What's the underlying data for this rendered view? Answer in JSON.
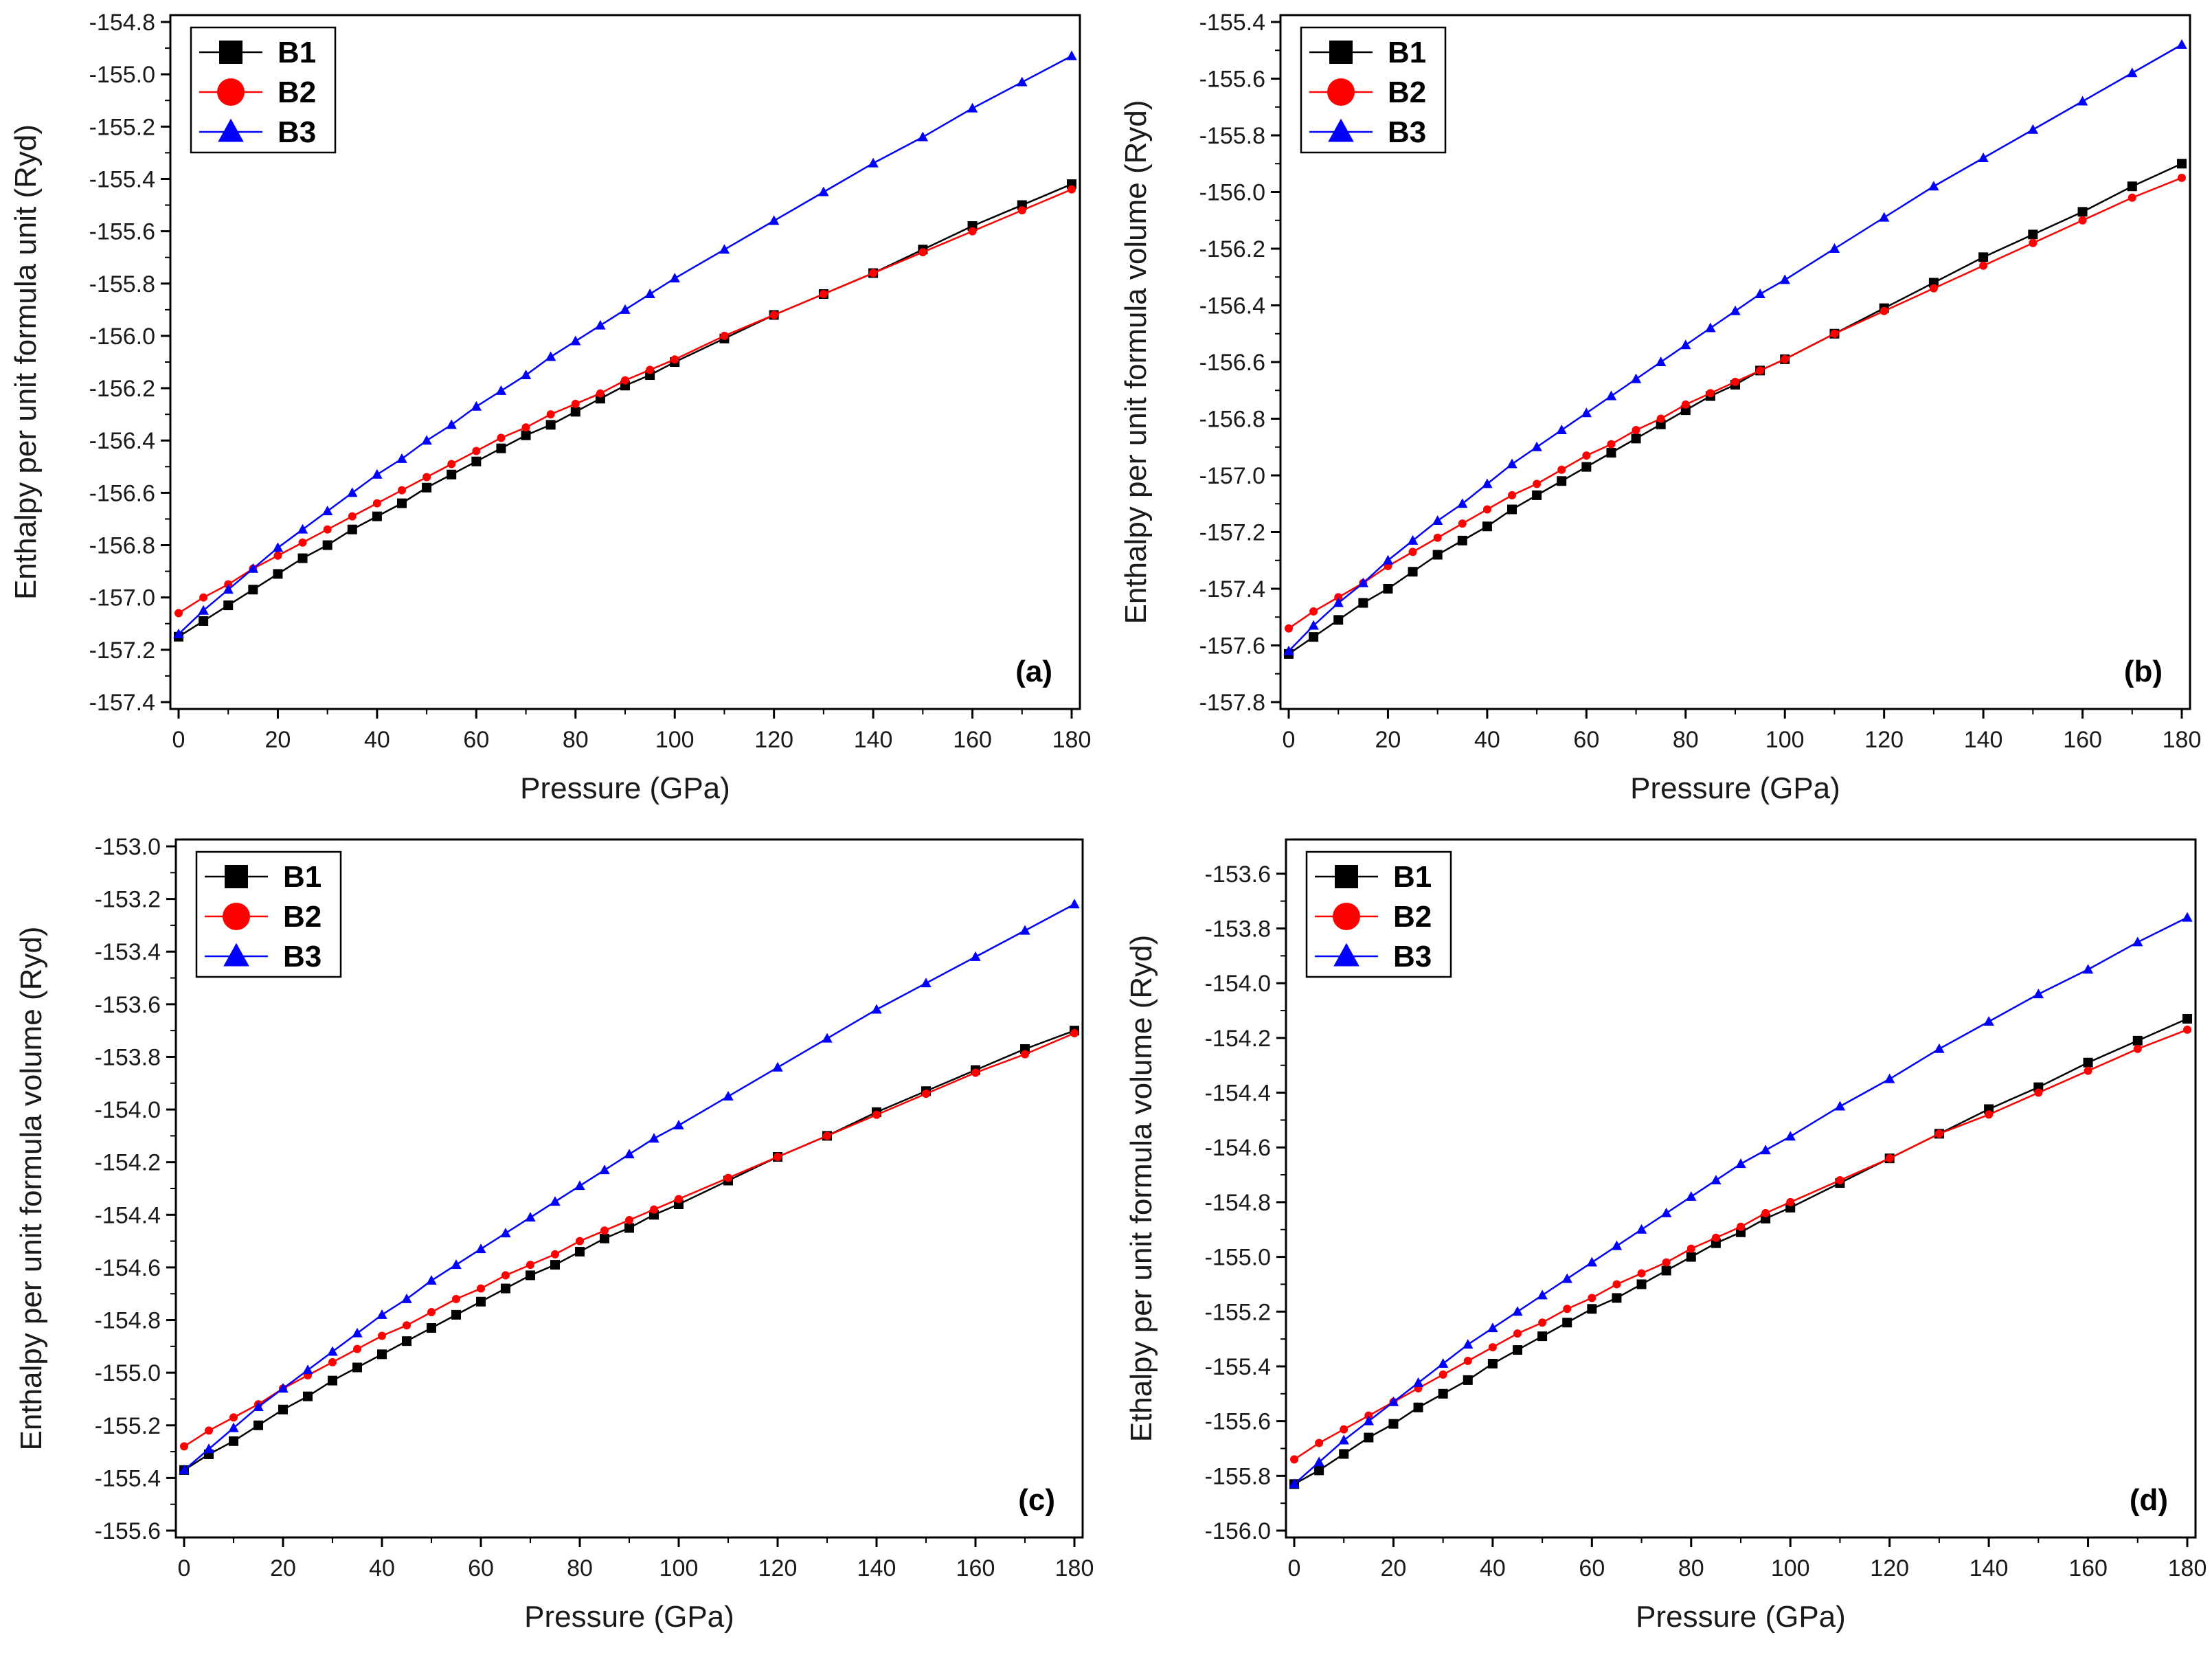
{
  "chart_data": [
    {
      "type": "line",
      "panel_label": "(a)",
      "xlabel": "Pressure (GPa)",
      "ylabel": "Enthalpy per unit formula unit (Ryd)",
      "xlim": [
        0,
        180
      ],
      "ylim": [
        -157.4,
        -154.8
      ],
      "xticks": [
        "0",
        "20",
        "40",
        "60",
        "80",
        "100",
        "120",
        "140",
        "160",
        "180"
      ],
      "yticks": [
        "-157.4",
        "-157.2",
        "-157.0",
        "-156.8",
        "-156.6",
        "-156.4",
        "-156.2",
        "-156.0",
        "-155.8",
        "-155.6",
        "-155.4",
        "-155.2",
        "-155.0",
        "-154.8"
      ],
      "legend": {
        "position": "top-left",
        "entries": [
          "B1",
          "B2",
          "B3"
        ]
      },
      "x": [
        0,
        5,
        10,
        15,
        20,
        25,
        30,
        35,
        40,
        45,
        50,
        55,
        60,
        65,
        70,
        75,
        80,
        85,
        90,
        95,
        100,
        110,
        120,
        130,
        140,
        150,
        160,
        170,
        180
      ],
      "series": [
        {
          "name": "B1",
          "marker": "square",
          "color": "#000000",
          "values": [
            -157.15,
            -157.09,
            -157.03,
            -156.97,
            -156.91,
            -156.85,
            -156.8,
            -156.74,
            -156.69,
            -156.64,
            -156.58,
            -156.53,
            -156.48,
            -156.43,
            -156.38,
            -156.34,
            -156.29,
            -156.24,
            -156.19,
            -156.15,
            -156.1,
            -156.01,
            -155.92,
            -155.84,
            -155.76,
            -155.67,
            -155.58,
            -155.5,
            -155.42
          ]
        },
        {
          "name": "B2",
          "marker": "circle",
          "color": "#ff0000",
          "values": [
            -157.06,
            -157.0,
            -156.95,
            -156.89,
            -156.84,
            -156.79,
            -156.74,
            -156.69,
            -156.64,
            -156.59,
            -156.54,
            -156.49,
            -156.44,
            -156.39,
            -156.35,
            -156.3,
            -156.26,
            -156.22,
            -156.17,
            -156.13,
            -156.09,
            -156.0,
            -155.92,
            -155.84,
            -155.76,
            -155.68,
            -155.6,
            -155.52,
            -155.44
          ]
        },
        {
          "name": "B3",
          "marker": "triangle",
          "color": "#0000ff",
          "values": [
            -157.14,
            -157.05,
            -156.97,
            -156.89,
            -156.81,
            -156.74,
            -156.67,
            -156.6,
            -156.53,
            -156.47,
            -156.4,
            -156.34,
            -156.27,
            -156.21,
            -156.15,
            -156.08,
            -156.02,
            -155.96,
            -155.9,
            -155.84,
            -155.78,
            -155.67,
            -155.56,
            -155.45,
            -155.34,
            -155.24,
            -155.13,
            -155.03,
            -154.93
          ]
        }
      ]
    },
    {
      "type": "line",
      "panel_label": "(b)",
      "xlabel": "Pressure (GPa)",
      "ylabel": "Enthalpy per unit formula volume (Ryd)",
      "xlim": [
        0,
        180
      ],
      "ylim": [
        -157.8,
        -155.4
      ],
      "xticks": [
        "0",
        "20",
        "40",
        "60",
        "80",
        "100",
        "120",
        "140",
        "160",
        "180"
      ],
      "yticks": [
        "-157.8",
        "-157.6",
        "-157.4",
        "-157.2",
        "-157.0",
        "-156.8",
        "-156.6",
        "-156.4",
        "-156.2",
        "-156.0",
        "-155.8",
        "-155.6",
        "-155.4"
      ],
      "legend": {
        "position": "top-left",
        "entries": [
          "B1",
          "B2",
          "B3"
        ]
      },
      "x": [
        0,
        5,
        10,
        15,
        20,
        25,
        30,
        35,
        40,
        45,
        50,
        55,
        60,
        65,
        70,
        75,
        80,
        85,
        90,
        95,
        100,
        110,
        120,
        130,
        140,
        150,
        160,
        170,
        180
      ],
      "series": [
        {
          "name": "B1",
          "marker": "square",
          "color": "#000000",
          "values": [
            -157.63,
            -157.57,
            -157.51,
            -157.45,
            -157.4,
            -157.34,
            -157.28,
            -157.23,
            -157.18,
            -157.12,
            -157.07,
            -157.02,
            -156.97,
            -156.92,
            -156.87,
            -156.82,
            -156.77,
            -156.72,
            -156.68,
            -156.63,
            -156.59,
            -156.5,
            -156.41,
            -156.32,
            -156.23,
            -156.15,
            -156.07,
            -155.98,
            -155.9
          ]
        },
        {
          "name": "B2",
          "marker": "circle",
          "color": "#ff0000",
          "values": [
            -157.54,
            -157.48,
            -157.43,
            -157.38,
            -157.32,
            -157.27,
            -157.22,
            -157.17,
            -157.12,
            -157.07,
            -157.03,
            -156.98,
            -156.93,
            -156.89,
            -156.84,
            -156.8,
            -156.75,
            -156.71,
            -156.67,
            -156.63,
            -156.59,
            -156.5,
            -156.42,
            -156.34,
            -156.26,
            -156.18,
            -156.1,
            -156.02,
            -155.95
          ]
        },
        {
          "name": "B3",
          "marker": "triangle",
          "color": "#0000ff",
          "values": [
            -157.62,
            -157.53,
            -157.45,
            -157.38,
            -157.3,
            -157.23,
            -157.16,
            -157.1,
            -157.03,
            -156.96,
            -156.9,
            -156.84,
            -156.78,
            -156.72,
            -156.66,
            -156.6,
            -156.54,
            -156.48,
            -156.42,
            -156.36,
            -156.31,
            -156.2,
            -156.09,
            -155.98,
            -155.88,
            -155.78,
            -155.68,
            -155.58,
            -155.48
          ]
        }
      ]
    },
    {
      "type": "line",
      "panel_label": "(c)",
      "xlabel": "Pressure (GPa)",
      "ylabel": "Enthalpy per unit formula volume (Ryd)",
      "xlim": [
        0,
        180
      ],
      "ylim": [
        -155.6,
        -153.0
      ],
      "xticks": [
        "0",
        "20",
        "40",
        "60",
        "80",
        "100",
        "120",
        "140",
        "160",
        "180"
      ],
      "yticks": [
        "-155.6",
        "-155.4",
        "-155.2",
        "-155.0",
        "-154.8",
        "-154.6",
        "-154.4",
        "-154.2",
        "-154.0",
        "-153.8",
        "-153.6",
        "-153.4",
        "-153.2",
        "-153.0"
      ],
      "legend": {
        "position": "top-left",
        "entries": [
          "B1",
          "B2",
          "B3"
        ]
      },
      "x": [
        0,
        5,
        10,
        15,
        20,
        25,
        30,
        35,
        40,
        45,
        50,
        55,
        60,
        65,
        70,
        75,
        80,
        85,
        90,
        95,
        100,
        110,
        120,
        130,
        140,
        150,
        160,
        170,
        180
      ],
      "series": [
        {
          "name": "B1",
          "marker": "square",
          "color": "#000000",
          "values": [
            -155.37,
            -155.31,
            -155.26,
            -155.2,
            -155.14,
            -155.09,
            -155.03,
            -154.98,
            -154.93,
            -154.88,
            -154.83,
            -154.78,
            -154.73,
            -154.68,
            -154.63,
            -154.59,
            -154.54,
            -154.49,
            -154.45,
            -154.4,
            -154.36,
            -154.27,
            -154.18,
            -154.1,
            -154.01,
            -153.93,
            -153.85,
            -153.77,
            -153.7
          ]
        },
        {
          "name": "B2",
          "marker": "circle",
          "color": "#ff0000",
          "values": [
            -155.28,
            -155.22,
            -155.17,
            -155.12,
            -155.06,
            -155.01,
            -154.96,
            -154.91,
            -154.86,
            -154.82,
            -154.77,
            -154.72,
            -154.68,
            -154.63,
            -154.59,
            -154.55,
            -154.5,
            -154.46,
            -154.42,
            -154.38,
            -154.34,
            -154.26,
            -154.18,
            -154.1,
            -154.02,
            -153.94,
            -153.86,
            -153.79,
            -153.71
          ]
        },
        {
          "name": "B3",
          "marker": "triangle",
          "color": "#0000ff",
          "values": [
            -155.37,
            -155.29,
            -155.21,
            -155.13,
            -155.06,
            -154.99,
            -154.92,
            -154.85,
            -154.78,
            -154.72,
            -154.65,
            -154.59,
            -154.53,
            -154.47,
            -154.41,
            -154.35,
            -154.29,
            -154.23,
            -154.17,
            -154.11,
            -154.06,
            -153.95,
            -153.84,
            -153.73,
            -153.62,
            -153.52,
            -153.42,
            -153.32,
            -153.22
          ]
        }
      ]
    },
    {
      "type": "line",
      "panel_label": "(d)",
      "xlabel": "Pressure (GPa)",
      "ylabel": "Ethalpy per unit formula volume (Ryd)",
      "xlim": [
        0,
        180
      ],
      "ylim": [
        -156.0,
        -153.5
      ],
      "xticks": [
        "0",
        "20",
        "40",
        "60",
        "80",
        "100",
        "120",
        "140",
        "160",
        "180"
      ],
      "yticks": [
        "-156.0",
        "-155.8",
        "-155.6",
        "-155.4",
        "-155.2",
        "-155.0",
        "-154.8",
        "-154.6",
        "-154.4",
        "-154.2",
        "-154.0",
        "-153.8",
        "-153.6"
      ],
      "legend": {
        "position": "top-left",
        "entries": [
          "B1",
          "B2",
          "B3"
        ]
      },
      "x": [
        0,
        5,
        10,
        15,
        20,
        25,
        30,
        35,
        40,
        45,
        50,
        55,
        60,
        65,
        70,
        75,
        80,
        85,
        90,
        95,
        100,
        110,
        120,
        130,
        140,
        150,
        160,
        170,
        180
      ],
      "series": [
        {
          "name": "B1",
          "marker": "square",
          "color": "#000000",
          "values": [
            -155.83,
            -155.78,
            -155.72,
            -155.66,
            -155.61,
            -155.55,
            -155.5,
            -155.45,
            -155.39,
            -155.34,
            -155.29,
            -155.24,
            -155.19,
            -155.15,
            -155.1,
            -155.05,
            -155.0,
            -154.95,
            -154.91,
            -154.86,
            -154.82,
            -154.73,
            -154.64,
            -154.55,
            -154.46,
            -154.38,
            -154.29,
            -154.21,
            -154.13
          ]
        },
        {
          "name": "B2",
          "marker": "circle",
          "color": "#ff0000",
          "values": [
            -155.74,
            -155.68,
            -155.63,
            -155.58,
            -155.53,
            -155.48,
            -155.43,
            -155.38,
            -155.33,
            -155.28,
            -155.24,
            -155.19,
            -155.15,
            -155.1,
            -155.06,
            -155.02,
            -154.97,
            -154.93,
            -154.89,
            -154.84,
            -154.8,
            -154.72,
            -154.64,
            -154.55,
            -154.48,
            -154.4,
            -154.32,
            -154.24,
            -154.17
          ]
        },
        {
          "name": "B3",
          "marker": "triangle",
          "color": "#0000ff",
          "values": [
            -155.83,
            -155.75,
            -155.67,
            -155.6,
            -155.53,
            -155.46,
            -155.39,
            -155.32,
            -155.26,
            -155.2,
            -155.14,
            -155.08,
            -155.02,
            -154.96,
            -154.9,
            -154.84,
            -154.78,
            -154.72,
            -154.66,
            -154.61,
            -154.56,
            -154.45,
            -154.35,
            -154.24,
            -154.14,
            -154.04,
            -153.95,
            -153.85,
            -153.76
          ]
        }
      ]
    }
  ]
}
